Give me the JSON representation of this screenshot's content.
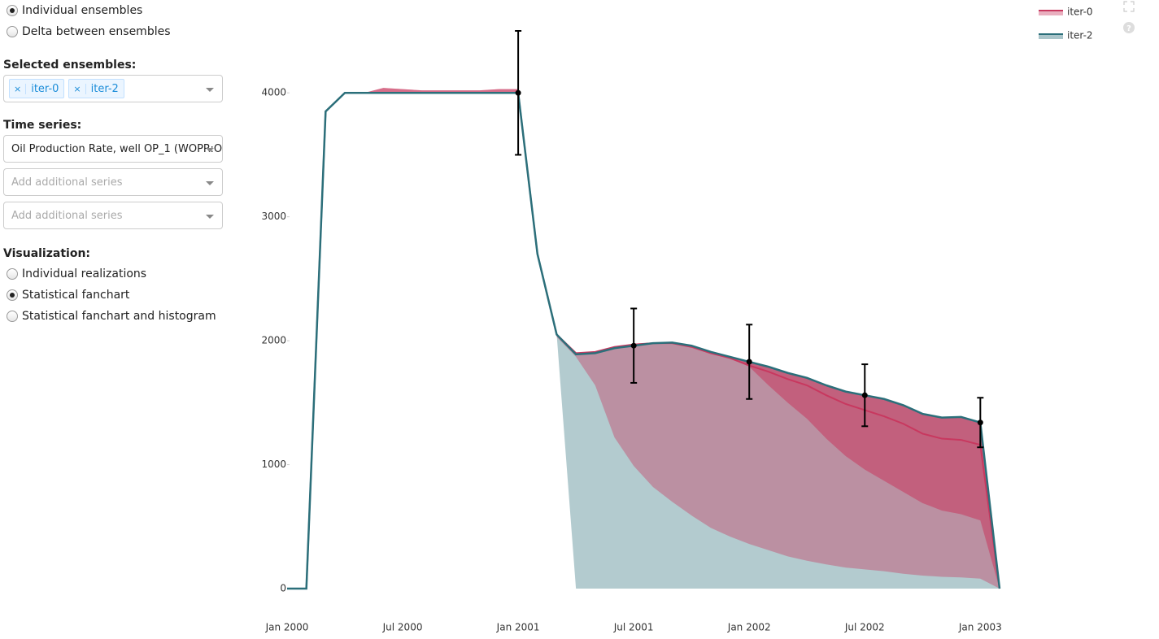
{
  "ensemble_mode": {
    "options": [
      "Individual ensembles",
      "Delta between ensembles"
    ],
    "selected": 0
  },
  "selected_ensembles": {
    "label": "Selected ensembles:",
    "tags": [
      "iter-0",
      "iter-2"
    ],
    "remove_symbol": "×"
  },
  "time_series": {
    "label": "Time series:",
    "selected": "Oil Production Rate, well OP_1 (WOPR:O",
    "placeholders": [
      "Add additional series",
      "Add additional series"
    ]
  },
  "visualization": {
    "label": "Visualization:",
    "options": [
      "Individual realizations",
      "Statistical fanchart",
      "Statistical fanchart and histogram"
    ],
    "selected": 1
  },
  "chart_data": {
    "type": "fanchart",
    "x": [
      "2000-01",
      "2000-02",
      "2000-03",
      "2000-04",
      "2000-05",
      "2000-06",
      "2000-07",
      "2000-08",
      "2000-09",
      "2000-10",
      "2000-11",
      "2000-12",
      "2001-01",
      "2001-02",
      "2001-03",
      "2001-04",
      "2001-05",
      "2001-06",
      "2001-07",
      "2001-08",
      "2001-09",
      "2001-10",
      "2001-11",
      "2001-12",
      "2002-01",
      "2002-02",
      "2002-03",
      "2002-04",
      "2002-05",
      "2002-06",
      "2002-07",
      "2002-08",
      "2002-09",
      "2002-10",
      "2002-11",
      "2002-12",
      "2003-01",
      "2003-02"
    ],
    "series": [
      {
        "name": "iter-0",
        "color": "#c8385f",
        "values": [
          0,
          0,
          3850,
          4000,
          4000,
          4000,
          4000,
          4000,
          4000,
          4000,
          4000,
          4000,
          4000,
          2700,
          2050,
          1900,
          1910,
          1950,
          1970,
          1980,
          1980,
          1950,
          1900,
          1860,
          1800,
          1750,
          1690,
          1640,
          1560,
          1490,
          1440,
          1390,
          1330,
          1250,
          1210,
          1200,
          1160,
          0
        ],
        "max": [
          0,
          0,
          3850,
          4000,
          4000,
          4040,
          4030,
          4020,
          4020,
          4020,
          4020,
          4030,
          4030,
          2700,
          2050,
          1900,
          1910,
          1950,
          1975,
          1985,
          1985,
          1960,
          1910,
          1870,
          1830,
          1790,
          1740,
          1700,
          1640,
          1590,
          1560,
          1530,
          1480,
          1410,
          1380,
          1385,
          1340,
          0
        ],
        "min": [
          0,
          0,
          3850,
          4000,
          4000,
          4000,
          4000,
          4000,
          4000,
          4000,
          4000,
          4000,
          4000,
          2700,
          2030,
          1870,
          1640,
          1220,
          990,
          820,
          700,
          590,
          490,
          420,
          360,
          310,
          260,
          225,
          195,
          170,
          155,
          140,
          120,
          105,
          95,
          90,
          80,
          0
        ],
        "p10": [
          0,
          0,
          3850,
          4000,
          4000,
          4000,
          4000,
          4000,
          4000,
          4000,
          4000,
          4000,
          4000,
          2700,
          2050,
          1900,
          1910,
          1950,
          1970,
          1980,
          1980,
          1950,
          1900,
          1860,
          1790,
          1640,
          1500,
          1370,
          1210,
          1070,
          960,
          870,
          780,
          690,
          630,
          600,
          550,
          0
        ]
      },
      {
        "name": "iter-2",
        "color": "#2b6f7a",
        "values": [
          0,
          0,
          3850,
          4000,
          4000,
          4000,
          4000,
          4000,
          4000,
          4000,
          4000,
          4000,
          4000,
          2700,
          2050,
          1890,
          1900,
          1940,
          1960,
          1980,
          1985,
          1960,
          1910,
          1870,
          1830,
          1790,
          1740,
          1700,
          1640,
          1590,
          1560,
          1530,
          1480,
          1410,
          1380,
          1385,
          1340,
          0
        ],
        "max": [
          0,
          0,
          3850,
          4000,
          4000,
          4000,
          4000,
          4000,
          4000,
          4000,
          4000,
          4000,
          4000,
          2700,
          2050,
          1890,
          1900,
          1940,
          1960,
          1980,
          1985,
          1960,
          1910,
          1870,
          1830,
          1790,
          1740,
          1700,
          1640,
          1590,
          1560,
          1530,
          1480,
          1410,
          1380,
          1385,
          1340,
          0
        ],
        "min": [
          0,
          0,
          3850,
          4000,
          4000,
          4000,
          4000,
          4000,
          4000,
          4000,
          4000,
          4000,
          4000,
          2700,
          2050,
          0,
          0,
          0,
          0,
          0,
          0,
          0,
          0,
          0,
          0,
          0,
          0,
          0,
          0,
          0,
          0,
          0,
          0,
          0,
          0,
          0,
          0,
          0
        ]
      }
    ],
    "observations": {
      "x": [
        "2001-01",
        "2001-07",
        "2002-01",
        "2002-07",
        "2003-01"
      ],
      "values": [
        4000,
        1960,
        1830,
        1560,
        1340
      ],
      "errors": [
        500,
        300,
        300,
        250,
        200
      ],
      "color": "#000000"
    },
    "xlim": [
      "2000-01",
      "2003-02"
    ],
    "xticks": [
      {
        "value": "2000-01",
        "label": "Jan 2000"
      },
      {
        "value": "2000-07",
        "label": "Jul 2000"
      },
      {
        "value": "2001-01",
        "label": "Jan 2001"
      },
      {
        "value": "2001-07",
        "label": "Jul 2001"
      },
      {
        "value": "2002-01",
        "label": "Jan 2002"
      },
      {
        "value": "2002-07",
        "label": "Jul 2002"
      },
      {
        "value": "2003-01",
        "label": "Jan 2003"
      }
    ],
    "ylim": [
      0,
      4500
    ],
    "yticks": [
      0,
      1000,
      2000,
      3000,
      4000
    ],
    "grid": false,
    "legend": "top-right"
  }
}
